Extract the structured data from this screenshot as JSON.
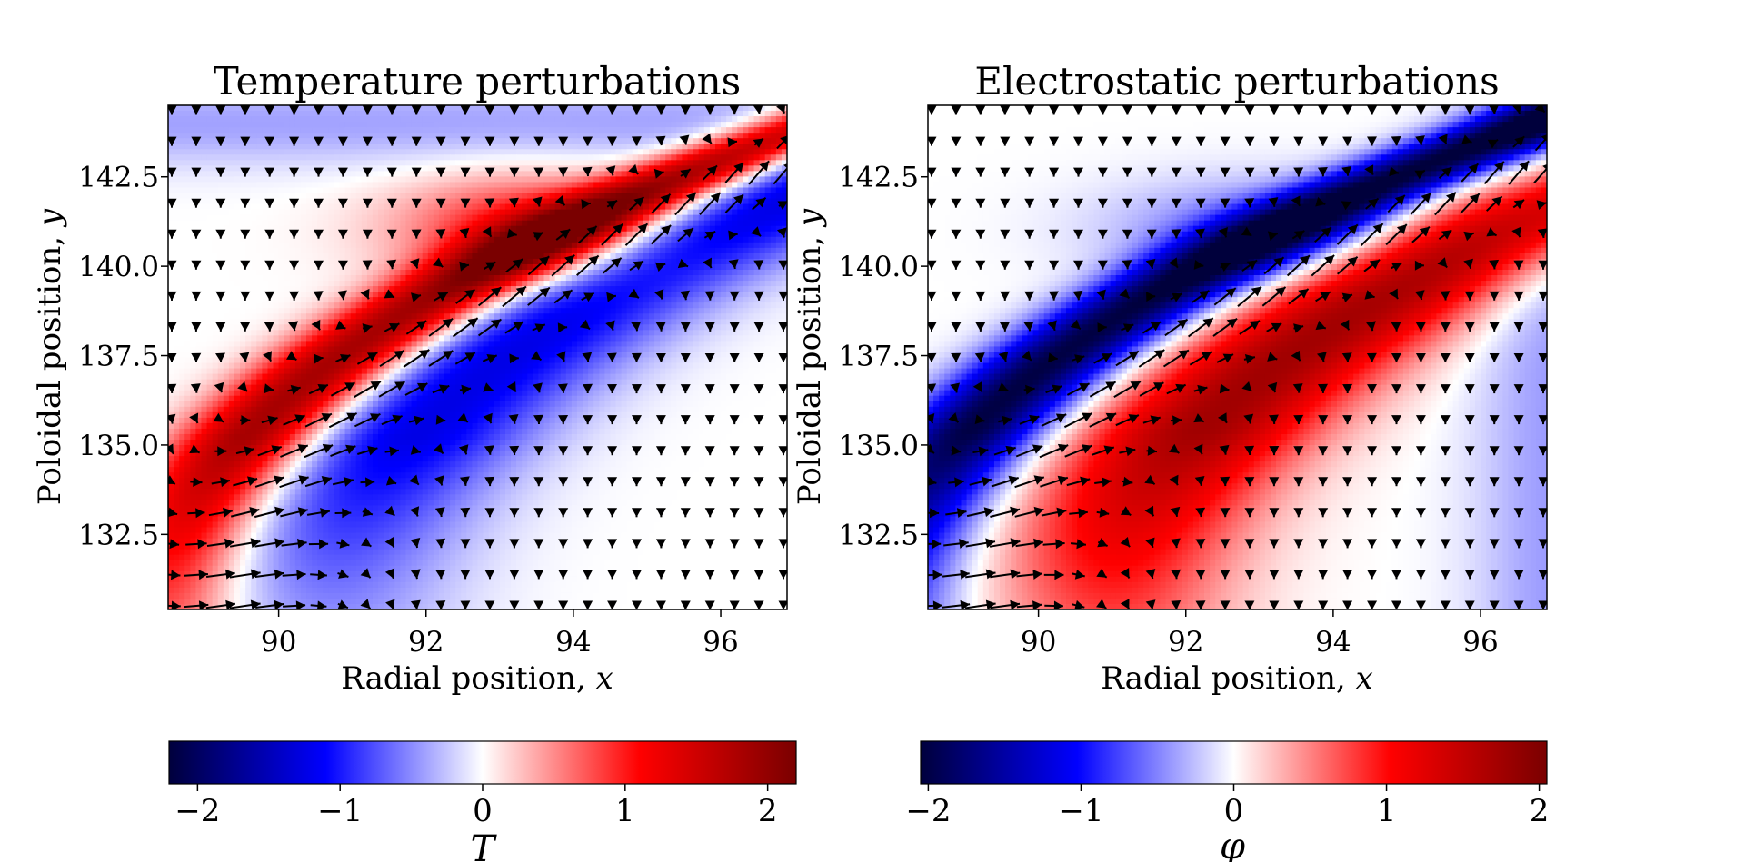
{
  "colors": {
    "cmap": [
      "#00003c",
      "#0000ff",
      "#ffffff",
      "#ff0000",
      "#7a0000"
    ],
    "arrow": "#000000",
    "axis": "#000000"
  },
  "chart_data": [
    {
      "type": "heatmap",
      "title": "Temperature perturbations",
      "xlabel_text": "Radial position, ",
      "xlabel_var": "x",
      "ylabel_text": "Poloidal position, ",
      "ylabel_var": "y",
      "xlim": [
        88.5,
        96.9
      ],
      "ylim": [
        130.4,
        144.5
      ],
      "xticks": [
        90,
        92,
        94,
        96
      ],
      "xtick_labels": [
        "90",
        "92",
        "94",
        "96"
      ],
      "yticks": [
        132.5,
        135.0,
        137.5,
        140.0,
        142.5
      ],
      "ytick_labels": [
        "132.5",
        "135.0",
        "137.5",
        "140.0",
        "142.5"
      ],
      "field": "temperature",
      "overlay": "quiver",
      "colorbar": {
        "label": "T",
        "vmin": -2.2,
        "vmax": 2.2,
        "ticks": [
          -2,
          -1,
          0,
          1,
          2
        ],
        "tick_labels": [
          "−2",
          "−1",
          "0",
          "1",
          "2"
        ]
      }
    },
    {
      "type": "heatmap",
      "title": "Electrostatic perturbations",
      "xlabel_text": "Radial position, ",
      "xlabel_var": "x",
      "ylabel_text": "Poloidal position, ",
      "ylabel_var": "y",
      "xlim": [
        88.5,
        96.9
      ],
      "ylim": [
        130.4,
        144.5
      ],
      "xticks": [
        90,
        92,
        94,
        96
      ],
      "xtick_labels": [
        "90",
        "92",
        "94",
        "96"
      ],
      "yticks": [
        132.5,
        135.0,
        137.5,
        140.0,
        142.5
      ],
      "ytick_labels": [
        "132.5",
        "135.0",
        "137.5",
        "140.0",
        "142.5"
      ],
      "field": "potential",
      "overlay": "quiver",
      "colorbar": {
        "label": "φ",
        "vmin": -2.05,
        "vmax": 2.05,
        "ticks": [
          -2,
          -1,
          0,
          1,
          2
        ],
        "tick_labels": [
          "−2",
          "−1",
          "0",
          "1",
          "2"
        ]
      }
    }
  ]
}
